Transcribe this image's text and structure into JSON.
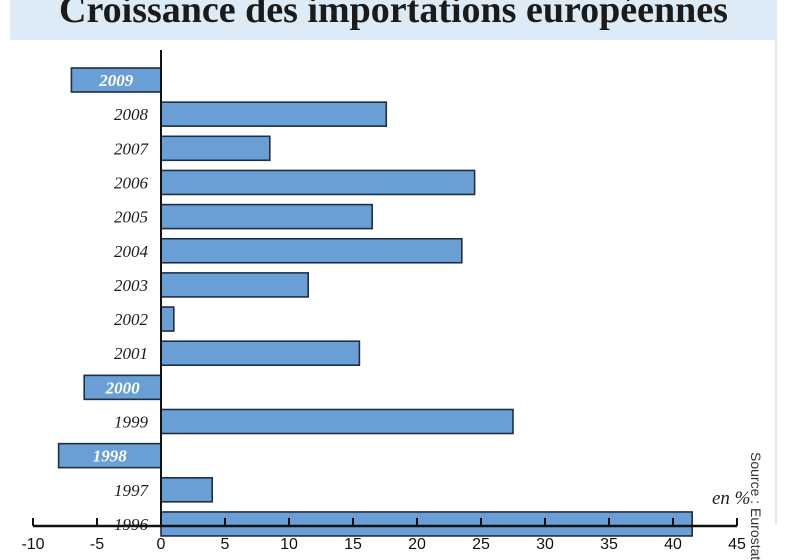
{
  "chart_data": {
    "type": "bar",
    "orientation": "horizontal",
    "title": "Croissance des importations européennes",
    "unit_label": "en %",
    "source": "Source : Eurostat",
    "categories": [
      "2009",
      "2008",
      "2007",
      "2006",
      "2005",
      "2004",
      "2003",
      "2002",
      "2001",
      "2000",
      "1999",
      "1998",
      "1997",
      "1996"
    ],
    "values": [
      -7,
      17.6,
      8.5,
      24.5,
      16.5,
      23.5,
      11.5,
      1,
      15.5,
      -6,
      27.5,
      -8,
      4,
      41.5
    ],
    "xlim": [
      -10,
      45
    ],
    "xticks": [
      "-10",
      "-5",
      "0",
      "5",
      "10",
      "15",
      "20",
      "25",
      "30",
      "35",
      "40",
      "45"
    ],
    "bar_color": "#6a9fd6",
    "negative_label_color": "#ffffff",
    "label_color": "#1b1b1b"
  }
}
